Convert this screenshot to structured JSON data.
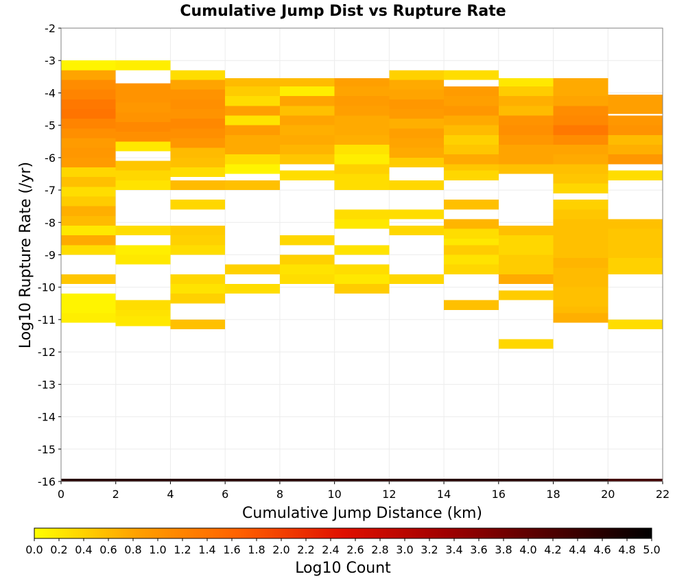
{
  "chart_data": {
    "type": "heatmap",
    "title": "Cumulative Jump Dist vs Rupture Rate",
    "xlabel": "Cumulative Jump Distance (km)",
    "ylabel": "Log10 Rupture Rate (/yr)",
    "xlim": [
      0,
      22
    ],
    "ylim": [
      -16,
      -2
    ],
    "x_ticks": [
      "0",
      "2",
      "4",
      "6",
      "8",
      "10",
      "12",
      "14",
      "16",
      "18",
      "20",
      "22"
    ],
    "y_ticks": [
      "-2",
      "-3",
      "-4",
      "-5",
      "-6",
      "-7",
      "-8",
      "-9",
      "-10",
      "-11",
      "-12",
      "-13",
      "-14",
      "-15",
      "-16"
    ],
    "x_bin_width": 2,
    "y_bin_height": 0.3,
    "colorbar": {
      "label": "Log10 Count",
      "min": 0.0,
      "max": 5.0,
      "ticks": [
        "0.0",
        "0.2",
        "0.4",
        "0.6",
        "0.8",
        "1.0",
        "1.2",
        "1.4",
        "1.6",
        "1.8",
        "2.0",
        "2.2",
        "2.4",
        "2.6",
        "2.8",
        "3.0",
        "3.2",
        "3.4",
        "3.6",
        "3.8",
        "4.0",
        "4.2",
        "4.4",
        "4.6",
        "4.8",
        "5.0"
      ],
      "colors": [
        "#ffff00",
        "#ffa000",
        "#ff6000",
        "#e01000",
        "#a00000",
        "#500000",
        "#000000"
      ]
    },
    "cells": [
      {
        "x": 1,
        "values": [
          [
            -3.15,
            0.1
          ],
          [
            -3.45,
            0.8
          ],
          [
            -3.75,
            1.1
          ],
          [
            -4.05,
            1.2
          ],
          [
            -4.35,
            1.35
          ],
          [
            -4.65,
            1.4
          ],
          [
            -4.95,
            1.2
          ],
          [
            -5.25,
            1.05
          ],
          [
            -5.55,
            0.9
          ],
          [
            -5.85,
            0.95
          ],
          [
            -6.15,
            0.9
          ],
          [
            -6.45,
            0.35
          ],
          [
            -6.75,
            0.55
          ],
          [
            -7.05,
            0.3
          ],
          [
            -7.35,
            0.45
          ],
          [
            -7.65,
            0.7
          ],
          [
            -7.95,
            0.6
          ],
          [
            -8.25,
            0.2
          ],
          [
            -8.55,
            0.75
          ],
          [
            -8.85,
            0.3
          ],
          [
            -9.75,
            0.5
          ],
          [
            -10.35,
            0.1
          ],
          [
            -10.65,
            0.1
          ],
          [
            -10.95,
            0.15
          ]
        ]
      },
      {
        "x": 3,
        "values": [
          [
            -3.15,
            0.15
          ],
          [
            -3.85,
            1.0
          ],
          [
            -4.15,
            1.0
          ],
          [
            -4.45,
            0.95
          ],
          [
            -4.75,
            1.0
          ],
          [
            -5.05,
            1.15
          ],
          [
            -5.35,
            1.05
          ],
          [
            -5.65,
            0.2
          ],
          [
            -6.25,
            0.5
          ],
          [
            -6.55,
            0.35
          ],
          [
            -6.85,
            0.25
          ],
          [
            -8.25,
            0.3
          ],
          [
            -8.85,
            0.15
          ],
          [
            -9.15,
            0.2
          ],
          [
            -10.55,
            0.3
          ],
          [
            -10.85,
            0.25
          ],
          [
            -11.05,
            0.2
          ]
        ]
      },
      {
        "x": 5,
        "values": [
          [
            -3.45,
            0.3
          ],
          [
            -3.75,
            0.8
          ],
          [
            -4.05,
            1.0
          ],
          [
            -4.35,
            1.05
          ],
          [
            -4.65,
            1.0
          ],
          [
            -4.95,
            1.15
          ],
          [
            -5.25,
            1.05
          ],
          [
            -5.55,
            0.95
          ],
          [
            -5.85,
            0.6
          ],
          [
            -6.15,
            0.55
          ],
          [
            -6.45,
            0.3
          ],
          [
            -6.85,
            0.6
          ],
          [
            -7.45,
            0.35
          ],
          [
            -8.25,
            0.45
          ],
          [
            -8.55,
            0.4
          ],
          [
            -8.85,
            0.3
          ],
          [
            -9.75,
            0.35
          ],
          [
            -10.05,
            0.25
          ],
          [
            -10.35,
            0.4
          ],
          [
            -11.15,
            0.55
          ]
        ]
      },
      {
        "x": 7,
        "values": [
          [
            -3.7,
            0.6
          ],
          [
            -3.95,
            0.45
          ],
          [
            -4.25,
            0.3
          ],
          [
            -4.55,
            0.85
          ],
          [
            -4.85,
            0.25
          ],
          [
            -5.15,
            0.9
          ],
          [
            -5.45,
            0.75
          ],
          [
            -5.75,
            0.75
          ],
          [
            -6.05,
            0.3
          ],
          [
            -6.35,
            0.1
          ],
          [
            -6.85,
            0.55
          ],
          [
            -9.45,
            0.4
          ],
          [
            -10.05,
            0.3
          ]
        ]
      },
      {
        "x": 9,
        "values": [
          [
            -3.7,
            0.6
          ],
          [
            -3.95,
            0.15
          ],
          [
            -4.25,
            0.8
          ],
          [
            -4.55,
            0.55
          ],
          [
            -4.85,
            0.8
          ],
          [
            -5.15,
            0.7
          ],
          [
            -5.45,
            0.75
          ],
          [
            -5.75,
            0.65
          ],
          [
            -6.05,
            0.5
          ],
          [
            -6.55,
            0.3
          ],
          [
            -8.55,
            0.35
          ],
          [
            -9.15,
            0.4
          ],
          [
            -9.45,
            0.25
          ],
          [
            -9.75,
            0.3
          ]
        ]
      },
      {
        "x": 11,
        "values": [
          [
            -3.7,
            0.85
          ],
          [
            -3.95,
            0.8
          ],
          [
            -4.25,
            0.9
          ],
          [
            -4.55,
            0.85
          ],
          [
            -4.85,
            0.75
          ],
          [
            -5.15,
            0.75
          ],
          [
            -5.45,
            0.7
          ],
          [
            -5.75,
            0.25
          ],
          [
            -6.05,
            0.15
          ],
          [
            -6.35,
            0.4
          ],
          [
            -6.65,
            0.3
          ],
          [
            -6.85,
            0.3
          ],
          [
            -7.75,
            0.3
          ],
          [
            -8.05,
            0.2
          ],
          [
            -8.85,
            0.25
          ],
          [
            -9.45,
            0.3
          ],
          [
            -9.75,
            0.2
          ],
          [
            -10.05,
            0.45
          ]
        ]
      },
      {
        "x": 13,
        "values": [
          [
            -3.45,
            0.4
          ],
          [
            -3.75,
            0.75
          ],
          [
            -4.05,
            0.8
          ],
          [
            -4.35,
            0.95
          ],
          [
            -4.65,
            0.9
          ],
          [
            -4.95,
            0.7
          ],
          [
            -5.25,
            0.85
          ],
          [
            -5.55,
            0.8
          ],
          [
            -5.85,
            0.75
          ],
          [
            -6.15,
            0.45
          ],
          [
            -6.85,
            0.35
          ],
          [
            -7.75,
            0.3
          ],
          [
            -8.25,
            0.35
          ],
          [
            -9.75,
            0.35
          ]
        ]
      },
      {
        "x": 15,
        "values": [
          [
            -3.45,
            0.3
          ],
          [
            -3.95,
            0.9
          ],
          [
            -4.25,
            0.85
          ],
          [
            -4.55,
            0.95
          ],
          [
            -4.85,
            0.75
          ],
          [
            -5.15,
            0.6
          ],
          [
            -5.45,
            0.4
          ],
          [
            -5.75,
            0.5
          ],
          [
            -6.05,
            0.75
          ],
          [
            -6.35,
            0.5
          ],
          [
            -6.55,
            0.35
          ],
          [
            -7.45,
            0.55
          ],
          [
            -8.05,
            0.65
          ],
          [
            -8.35,
            0.3
          ],
          [
            -8.65,
            0.2
          ],
          [
            -8.85,
            0.45
          ],
          [
            -9.15,
            0.25
          ],
          [
            -9.45,
            0.35
          ],
          [
            -10.55,
            0.55
          ]
        ]
      },
      {
        "x": 17,
        "values": [
          [
            -3.7,
            0.2
          ],
          [
            -3.95,
            0.45
          ],
          [
            -4.25,
            0.7
          ],
          [
            -4.55,
            0.6
          ],
          [
            -4.85,
            1.0
          ],
          [
            -5.15,
            1.05
          ],
          [
            -5.45,
            0.95
          ],
          [
            -5.75,
            0.8
          ],
          [
            -6.05,
            0.8
          ],
          [
            -6.35,
            0.55
          ],
          [
            -8.25,
            0.55
          ],
          [
            -8.55,
            0.35
          ],
          [
            -8.85,
            0.35
          ],
          [
            -9.15,
            0.45
          ],
          [
            -9.45,
            0.45
          ],
          [
            -9.75,
            0.75
          ],
          [
            -10.25,
            0.45
          ],
          [
            -11.75,
            0.35
          ]
        ]
      },
      {
        "x": 19,
        "values": [
          [
            -3.7,
            0.75
          ],
          [
            -3.95,
            0.75
          ],
          [
            -4.25,
            0.8
          ],
          [
            -4.55,
            1.1
          ],
          [
            -4.85,
            1.15
          ],
          [
            -5.15,
            1.35
          ],
          [
            -5.45,
            1.1
          ],
          [
            -5.75,
            0.8
          ],
          [
            -6.05,
            0.75
          ],
          [
            -6.35,
            0.55
          ],
          [
            -6.65,
            0.5
          ],
          [
            -6.95,
            0.35
          ],
          [
            -7.45,
            0.4
          ],
          [
            -7.75,
            0.5
          ],
          [
            -8.05,
            0.55
          ],
          [
            -8.35,
            0.55
          ],
          [
            -8.65,
            0.55
          ],
          [
            -8.95,
            0.55
          ],
          [
            -9.25,
            0.65
          ],
          [
            -9.55,
            0.6
          ],
          [
            -9.85,
            0.6
          ],
          [
            -10.15,
            0.55
          ],
          [
            -10.45,
            0.55
          ],
          [
            -10.75,
            0.6
          ],
          [
            -10.95,
            0.7
          ]
        ]
      },
      {
        "x": 21,
        "values": [
          [
            -4.2,
            0.85
          ],
          [
            -4.5,
            0.85
          ],
          [
            -4.85,
            0.95
          ],
          [
            -5.15,
            1.0
          ],
          [
            -5.45,
            0.6
          ],
          [
            -5.75,
            0.7
          ],
          [
            -6.05,
            0.95
          ],
          [
            -6.55,
            0.3
          ],
          [
            -8.05,
            0.55
          ],
          [
            -8.35,
            0.5
          ],
          [
            -8.65,
            0.5
          ],
          [
            -8.95,
            0.5
          ],
          [
            -9.25,
            0.4
          ],
          [
            -9.45,
            0.4
          ],
          [
            -11.15,
            0.3
          ]
        ]
      }
    ],
    "bottom_row": {
      "y": -16,
      "values": [
        4.6,
        4.6,
        4.6,
        4.6,
        4.6,
        4.6,
        4.6,
        4.6,
        4.6,
        4.6,
        4.3
      ]
    }
  }
}
